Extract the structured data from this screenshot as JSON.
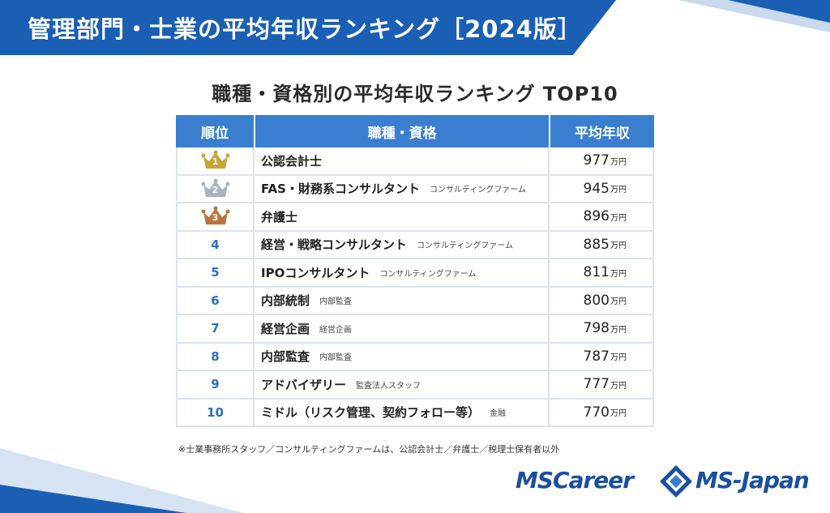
{
  "header": {
    "title": "管理部門・士業の平均年収ランキング［2024版］"
  },
  "subtitle": "職種・資格別の平均年収ランキング TOP10",
  "table": {
    "columns": [
      "順位",
      "職種・資格",
      "平均年収"
    ],
    "unit": "万円",
    "rows": [
      {
        "rank": "1",
        "name": "公認会計士",
        "sub": "",
        "salary": "977",
        "crown": "gold",
        "crown_color": "#c9a43a"
      },
      {
        "rank": "2",
        "name": "FAS・財務系コンサルタント",
        "sub": "コンサルティングファーム",
        "salary": "945",
        "crown": "silver",
        "crown_color": "#a9b3bd"
      },
      {
        "rank": "3",
        "name": "弁護士",
        "sub": "",
        "salary": "896",
        "crown": "bronze",
        "crown_color": "#b8763e"
      },
      {
        "rank": "4",
        "name": "経営・戦略コンサルタント",
        "sub": "コンサルティングファーム",
        "salary": "885"
      },
      {
        "rank": "5",
        "name": "IPOコンサルタント",
        "sub": "コンサルティングファーム",
        "salary": "811"
      },
      {
        "rank": "6",
        "name": "内部統制",
        "sub": "内部監査",
        "salary": "800"
      },
      {
        "rank": "7",
        "name": "経営企画",
        "sub": "経営企画",
        "salary": "798"
      },
      {
        "rank": "8",
        "name": "内部監査",
        "sub": "内部監査",
        "salary": "787"
      },
      {
        "rank": "9",
        "name": "アドバイザリー",
        "sub": "監査法人スタッフ",
        "salary": "777"
      },
      {
        "rank": "10",
        "name": "ミドル（リスク管理、契約フォロー等）",
        "sub": "金融",
        "salary": "770"
      }
    ]
  },
  "footnote": "※士業事務所スタッフ／コンサルティングファームは、公認会計士／弁護士／税理士保有者以外",
  "logos": {
    "left": "MSCareer",
    "right": "MS-Japan"
  },
  "colors": {
    "brand_blue": "#1a5fb4",
    "header_blue": "#3a7fcf",
    "rank_blue": "#2d6fbf"
  }
}
